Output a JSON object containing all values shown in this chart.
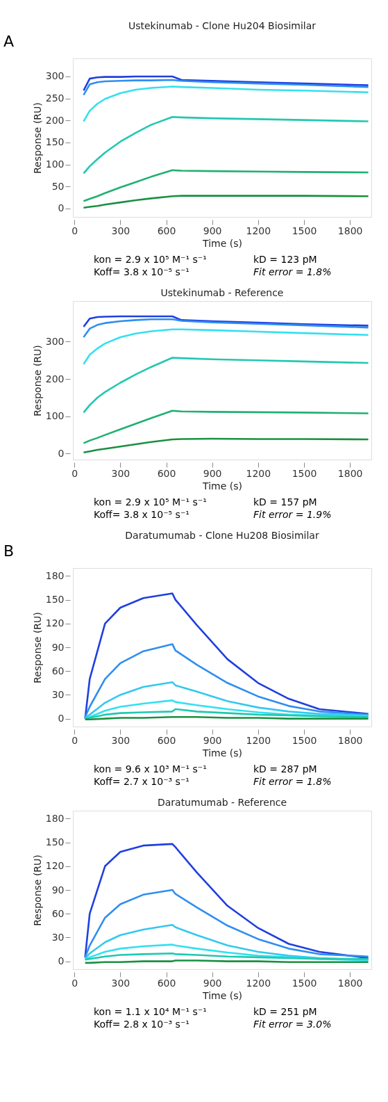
{
  "chart_data": [
    {
      "type": "line",
      "title": "Ustekinumab - Clone Hu204 Biosimilar",
      "xlabel": "Time (s)",
      "ylabel": "Response (RU)",
      "xlim": [
        -10,
        1940
      ],
      "ylim": [
        -19,
        341
      ],
      "xticks": [
        0,
        300,
        600,
        900,
        1200,
        1500,
        1800
      ],
      "yticks": [
        0,
        50,
        100,
        150,
        200,
        250,
        300
      ],
      "x": [
        60,
        100,
        150,
        200,
        300,
        400,
        500,
        640,
        700,
        900,
        1200,
        1500,
        1920
      ],
      "series": [
        {
          "color": "#1f3fe0",
          "values": [
            268,
            295,
            298,
            299,
            299,
            300,
            300,
            300,
            292,
            290,
            287,
            284,
            280
          ]
        },
        {
          "color": "#2f8ef0",
          "values": [
            258,
            282,
            287,
            289,
            290,
            291,
            291,
            292,
            290,
            287,
            284,
            281,
            276
          ]
        },
        {
          "color": "#33e0f0",
          "values": [
            198,
            222,
            238,
            249,
            262,
            270,
            274,
            277,
            276,
            274,
            270,
            268,
            264
          ]
        },
        {
          "color": "#20c8b0",
          "values": [
            80,
            96,
            112,
            127,
            152,
            172,
            190,
            208,
            207,
            205,
            203,
            201,
            198
          ]
        },
        {
          "color": "#20b070",
          "values": [
            17,
            22,
            28,
            35,
            48,
            60,
            72,
            87,
            86,
            85,
            84,
            83,
            82
          ]
        },
        {
          "color": "#1a9040",
          "values": [
            2,
            4,
            6,
            9,
            14,
            19,
            23,
            28,
            29,
            29,
            29,
            29,
            28
          ]
        }
      ],
      "annotations": [
        "A",
        "kon = 2.9 x 10⁵ M⁻¹ s⁻¹",
        "kD = 123 pM",
        "Koff= 3.8 x 10⁻⁵ s⁻¹",
        "Fit error = 1.8%"
      ]
    },
    {
      "type": "line",
      "title": "Ustekinumab - Reference",
      "xlabel": "Time (s)",
      "ylabel": "Response (RU)",
      "xlim": [
        -10,
        1940
      ],
      "ylim": [
        -16,
        409
      ],
      "xticks": [
        0,
        300,
        600,
        900,
        1200,
        1500,
        1800
      ],
      "yticks": [
        0,
        100,
        200,
        300
      ],
      "x": [
        60,
        100,
        150,
        200,
        300,
        400,
        500,
        640,
        700,
        900,
        1200,
        1500,
        1920
      ],
      "series": [
        {
          "color": "#1f3fe0",
          "values": [
            340,
            362,
            366,
            367,
            368,
            368,
            368,
            368,
            358,
            355,
            351,
            347,
            343
          ]
        },
        {
          "color": "#2f8ef0",
          "values": [
            312,
            335,
            345,
            350,
            355,
            358,
            360,
            360,
            356,
            352,
            348,
            344,
            338
          ]
        },
        {
          "color": "#33e0f0",
          "values": [
            240,
            265,
            282,
            295,
            312,
            322,
            328,
            333,
            333,
            331,
            327,
            323,
            318
          ]
        },
        {
          "color": "#20c8b0",
          "values": [
            110,
            130,
            150,
            165,
            190,
            212,
            232,
            257,
            256,
            253,
            250,
            247,
            243
          ]
        },
        {
          "color": "#20b070",
          "values": [
            28,
            35,
            42,
            50,
            65,
            80,
            95,
            115,
            113,
            112,
            111,
            110,
            108
          ]
        },
        {
          "color": "#1a9040",
          "values": [
            3,
            6,
            10,
            13,
            19,
            25,
            31,
            38,
            39,
            40,
            39,
            39,
            38
          ]
        }
      ],
      "annotations": [
        "kon = 2.9 x 10⁵ M⁻¹ s⁻¹",
        "kD = 157 pM",
        "Koff= 3.8 x 10⁻⁵ s⁻¹",
        "Fit error = 1.9%"
      ]
    },
    {
      "type": "line",
      "title": "Daratumumab - Clone Hu208 Biosimilar",
      "xlabel": "Time (s)",
      "ylabel": "Response (RU)",
      "xlim": [
        -10,
        1940
      ],
      "ylim": [
        -10,
        190
      ],
      "xticks": [
        0,
        300,
        600,
        900,
        1200,
        1500,
        1800
      ],
      "yticks": [
        0,
        30,
        60,
        90,
        120,
        150,
        180
      ],
      "x": [
        70,
        100,
        200,
        300,
        450,
        640,
        660,
        800,
        1000,
        1200,
        1400,
        1600,
        1920
      ],
      "series": [
        {
          "color": "#1f3fe0",
          "values": [
            0,
            50,
            120,
            140,
            152,
            158,
            150,
            118,
            75,
            45,
            25,
            12,
            6
          ]
        },
        {
          "color": "#2f8ef0",
          "values": [
            2,
            15,
            50,
            70,
            85,
            94,
            86,
            68,
            45,
            28,
            16,
            9,
            5
          ]
        },
        {
          "color": "#33c8f0",
          "values": [
            1,
            5,
            20,
            30,
            40,
            46,
            42,
            34,
            22,
            14,
            9,
            6,
            4
          ]
        },
        {
          "color": "#33e0f0",
          "values": [
            0,
            2,
            10,
            15,
            19,
            23,
            21,
            17,
            12,
            8,
            5,
            4,
            3
          ]
        },
        {
          "color": "#20c8b0",
          "values": [
            0,
            1,
            5,
            7,
            8,
            9,
            12,
            9,
            7,
            5,
            4,
            3,
            2
          ]
        },
        {
          "color": "#1a9040",
          "values": [
            -1,
            -1,
            0,
            1,
            1,
            2,
            2,
            2,
            1,
            1,
            0,
            0,
            0
          ]
        }
      ],
      "annotations": [
        "B",
        "kon = 9.6 x 10³ M⁻¹ s⁻¹",
        "kD = 287 pM",
        "Koff= 2.7 x 10⁻³ s⁻¹",
        "Fit error = 1.8%"
      ]
    },
    {
      "type": "line",
      "title": "Daratumumab - Reference",
      "xlabel": "Time (s)",
      "ylabel": "Response (RU)",
      "xlim": [
        -10,
        1940
      ],
      "ylim": [
        -10,
        190
      ],
      "xticks": [
        0,
        300,
        600,
        900,
        1200,
        1500,
        1800
      ],
      "yticks": [
        0,
        30,
        60,
        90,
        120,
        150,
        180
      ],
      "x": [
        70,
        100,
        200,
        300,
        450,
        640,
        660,
        800,
        1000,
        1200,
        1400,
        1600,
        1920
      ],
      "series": [
        {
          "color": "#1f3fe0",
          "values": [
            5,
            60,
            120,
            138,
            146,
            148,
            144,
            112,
            70,
            42,
            22,
            12,
            4
          ]
        },
        {
          "color": "#2f8ef0",
          "values": [
            5,
            20,
            55,
            72,
            84,
            90,
            85,
            68,
            45,
            28,
            16,
            9,
            6
          ]
        },
        {
          "color": "#33c8f0",
          "values": [
            3,
            10,
            24,
            33,
            40,
            46,
            43,
            33,
            20,
            12,
            7,
            4,
            2
          ]
        },
        {
          "color": "#33e0f0",
          "values": [
            2,
            5,
            12,
            16,
            19,
            21,
            20,
            16,
            11,
            7,
            5,
            3,
            1
          ]
        },
        {
          "color": "#20c8b0",
          "values": [
            2,
            3,
            6,
            8,
            9,
            10,
            9,
            8,
            6,
            5,
            4,
            3,
            3
          ]
        },
        {
          "color": "#1a9040",
          "values": [
            -2,
            -2,
            -1,
            -1,
            0,
            0,
            1,
            1,
            0,
            0,
            -1,
            -1,
            -1
          ]
        }
      ],
      "annotations": [
        "kon = 1.1 x 10⁴ M⁻¹ s⁻¹",
        "kD = 251 pM",
        "Koff= 2.8 x 10⁻³ s⁻¹",
        "Fit error = 3.0%"
      ]
    }
  ]
}
